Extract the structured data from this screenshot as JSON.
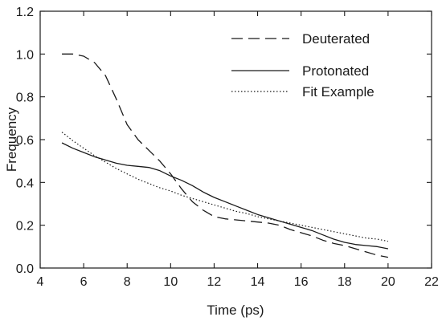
{
  "chart_data": {
    "type": "line",
    "xlabel": "Time (ps)",
    "ylabel": "Frequency",
    "xlim": [
      4,
      22
    ],
    "ylim": [
      0.0,
      1.2
    ],
    "xticks": [
      "4",
      "6",
      "8",
      "10",
      "12",
      "14",
      "16",
      "18",
      "20",
      "22"
    ],
    "yticks": [
      "0.0",
      "0.2",
      "0.4",
      "0.6",
      "0.8",
      "1.0",
      "1.2"
    ],
    "grid": false,
    "legend_position": "top-right",
    "series": [
      {
        "name": "Deuterated",
        "style": "dashed",
        "color": "#1a1a1a",
        "x": [
          5,
          5.5,
          6,
          6.5,
          7,
          7.5,
          8,
          8.5,
          9,
          9.5,
          10,
          10.5,
          11,
          11.5,
          12,
          12.5,
          13,
          13.5,
          14,
          14.5,
          15,
          15.5,
          16,
          16.5,
          17,
          17.5,
          18,
          18.5,
          19,
          19.5,
          20
        ],
        "y": [
          1.0,
          1.0,
          0.99,
          0.96,
          0.9,
          0.79,
          0.67,
          0.6,
          0.55,
          0.5,
          0.44,
          0.37,
          0.31,
          0.27,
          0.24,
          0.23,
          0.225,
          0.22,
          0.215,
          0.21,
          0.2,
          0.18,
          0.165,
          0.15,
          0.13,
          0.115,
          0.105,
          0.09,
          0.075,
          0.06,
          0.05
        ]
      },
      {
        "name": "Protonated",
        "style": "solid",
        "color": "#1a1a1a",
        "x": [
          5,
          5.5,
          6,
          6.5,
          7,
          7.5,
          8,
          8.5,
          9,
          9.5,
          10,
          10.5,
          11,
          11.5,
          12,
          12.5,
          13,
          13.5,
          14,
          14.5,
          15,
          15.5,
          16,
          16.5,
          17,
          17.5,
          18,
          18.5,
          19,
          19.5,
          20
        ],
        "y": [
          0.585,
          0.56,
          0.54,
          0.52,
          0.505,
          0.49,
          0.48,
          0.475,
          0.47,
          0.455,
          0.43,
          0.41,
          0.385,
          0.355,
          0.33,
          0.31,
          0.29,
          0.27,
          0.25,
          0.235,
          0.22,
          0.205,
          0.19,
          0.175,
          0.155,
          0.135,
          0.12,
          0.11,
          0.105,
          0.1,
          0.09
        ]
      },
      {
        "name": "Fit Example",
        "style": "dotted",
        "color": "#1a1a1a",
        "x": [
          5,
          5.5,
          6,
          6.5,
          7,
          7.5,
          8,
          8.5,
          9,
          9.5,
          10,
          10.5,
          11,
          11.5,
          12,
          12.5,
          13,
          13.5,
          14,
          14.5,
          15,
          15.5,
          16,
          16.5,
          17,
          17.5,
          18,
          18.5,
          19,
          19.5,
          20
        ],
        "y": [
          0.635,
          0.595,
          0.56,
          0.525,
          0.495,
          0.465,
          0.44,
          0.415,
          0.395,
          0.375,
          0.36,
          0.34,
          0.325,
          0.31,
          0.295,
          0.28,
          0.265,
          0.255,
          0.24,
          0.23,
          0.22,
          0.21,
          0.2,
          0.19,
          0.18,
          0.17,
          0.16,
          0.15,
          0.14,
          0.135,
          0.125
        ]
      }
    ]
  }
}
